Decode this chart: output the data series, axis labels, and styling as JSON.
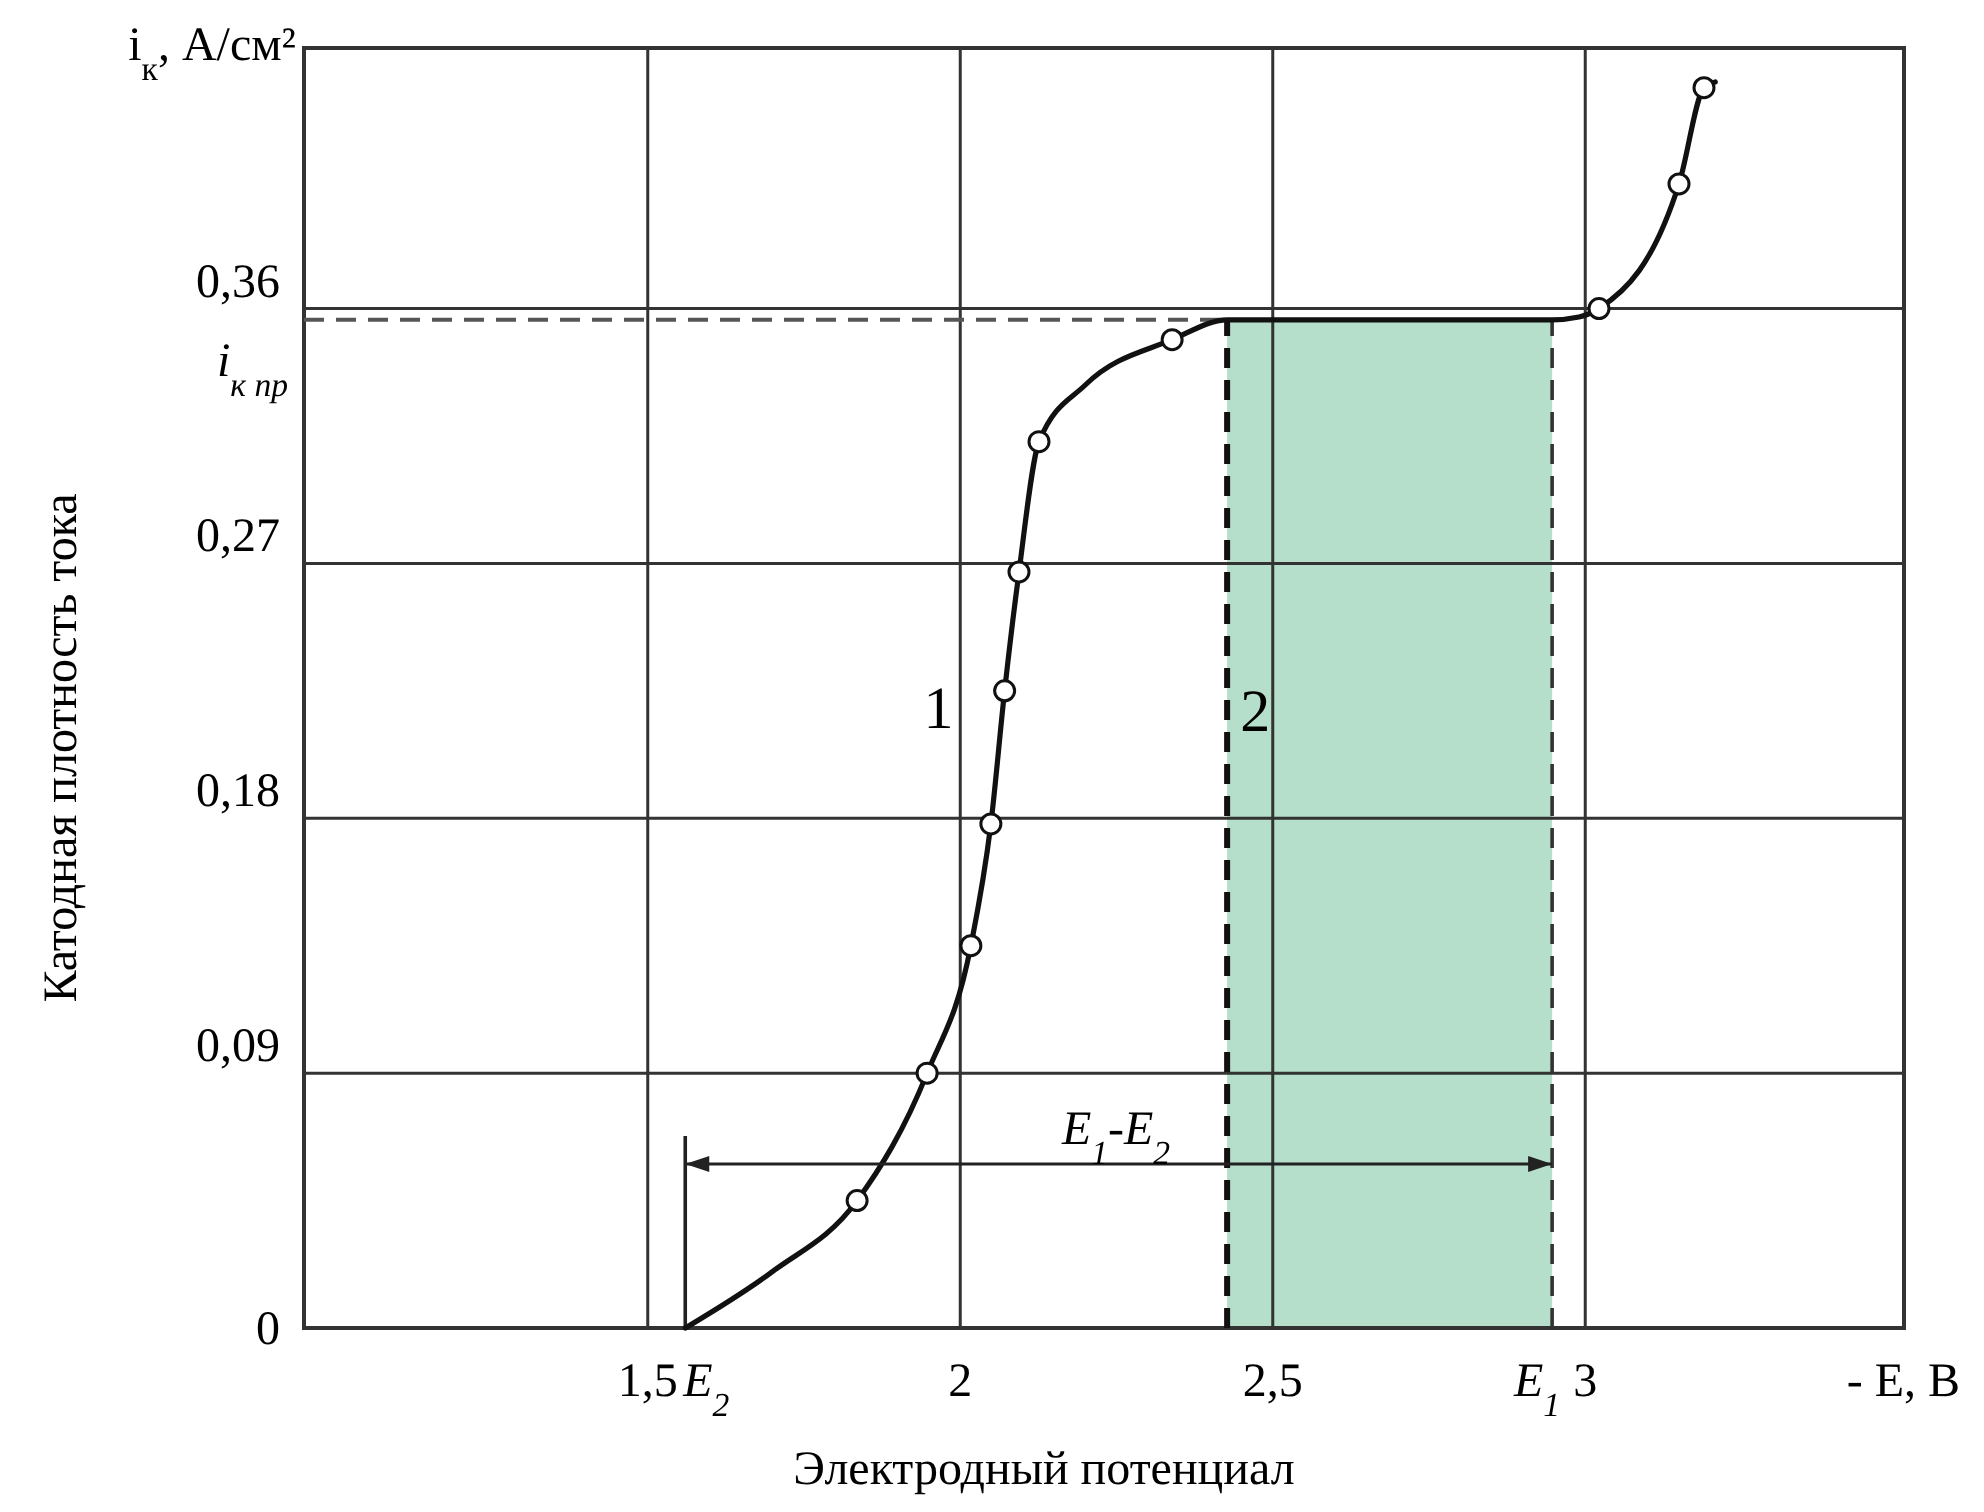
{
  "chart_data": {
    "type": "line",
    "ylabel": "Катодная плотность тока",
    "xlabel": "Электродный потенциал",
    "xlim": [
      0.95,
      3.51
    ],
    "ylim": [
      0,
      0.452
    ],
    "xticks": [
      {
        "value": 1.5,
        "label": "1,5"
      },
      2,
      {
        "value": 2.5,
        "label": "2,5"
      },
      3
    ],
    "yticks": [
      0,
      {
        "value": 0.09,
        "label": "0,09"
      },
      {
        "value": 0.18,
        "label": "0,18"
      },
      {
        "value": 0.27,
        "label": "0,27"
      },
      {
        "value": 0.36,
        "label": "0,36"
      }
    ],
    "grid": true,
    "series": [
      {
        "color": "#111111",
        "line_style": "solid",
        "marker": "none",
        "x": [
          1.56,
          1.7,
          1.835,
          1.947,
          2.017,
          2.049,
          2.071,
          2.094,
          2.126,
          2.2,
          2.339,
          2.427,
          2.947,
          2.99,
          3.022,
          3.15,
          3.19,
          3.208
        ],
        "values": [
          0,
          0.02,
          0.045,
          0.09,
          0.135,
          0.178,
          0.225,
          0.267,
          0.313,
          0.333,
          0.349,
          0.356,
          0.356,
          0.357,
          0.36,
          0.404,
          0.438,
          0.44
        ]
      },
      {
        "type": "scatter",
        "color": "#111111",
        "marker": "circle",
        "x": [
          1.835,
          1.947,
          2.017,
          2.049,
          2.071,
          2.094,
          2.126,
          2.339,
          3.022,
          3.15,
          3.19
        ],
        "values": [
          0.045,
          0.09,
          0.135,
          0.178,
          0.225,
          0.267,
          0.313,
          0.349,
          0.36,
          0.404,
          0.438
        ]
      }
    ],
    "bands": [
      {
        "axis": "x",
        "from": 2.427,
        "to": 2.947,
        "color": "#b5dfca"
      }
    ],
    "ref_lines": [
      {
        "axis": "y",
        "value": 0.356,
        "label": "i$_{к пр}$",
        "line_style": "dashed",
        "color": "#555555"
      },
      {
        "axis": "x",
        "value": 1.56,
        "label": "E$_{2}$",
        "line_style": "solid",
        "color": "#222222"
      },
      {
        "axis": "x",
        "value": 2.427,
        "line_style": "dashed",
        "color": "#111111"
      },
      {
        "axis": "x",
        "value": 2.947,
        "label": "E$_{1}$",
        "line_style": "dashed",
        "color": "#333333"
      }
    ],
    "annotations": [
      "i$_{к}$, А/см²",
      "- E, В",
      "1",
      {
        "text": "2",
        "x": 2.427,
        "y": 0.218
      },
      "E$_{1}$-E$_{2}$"
    ]
  }
}
